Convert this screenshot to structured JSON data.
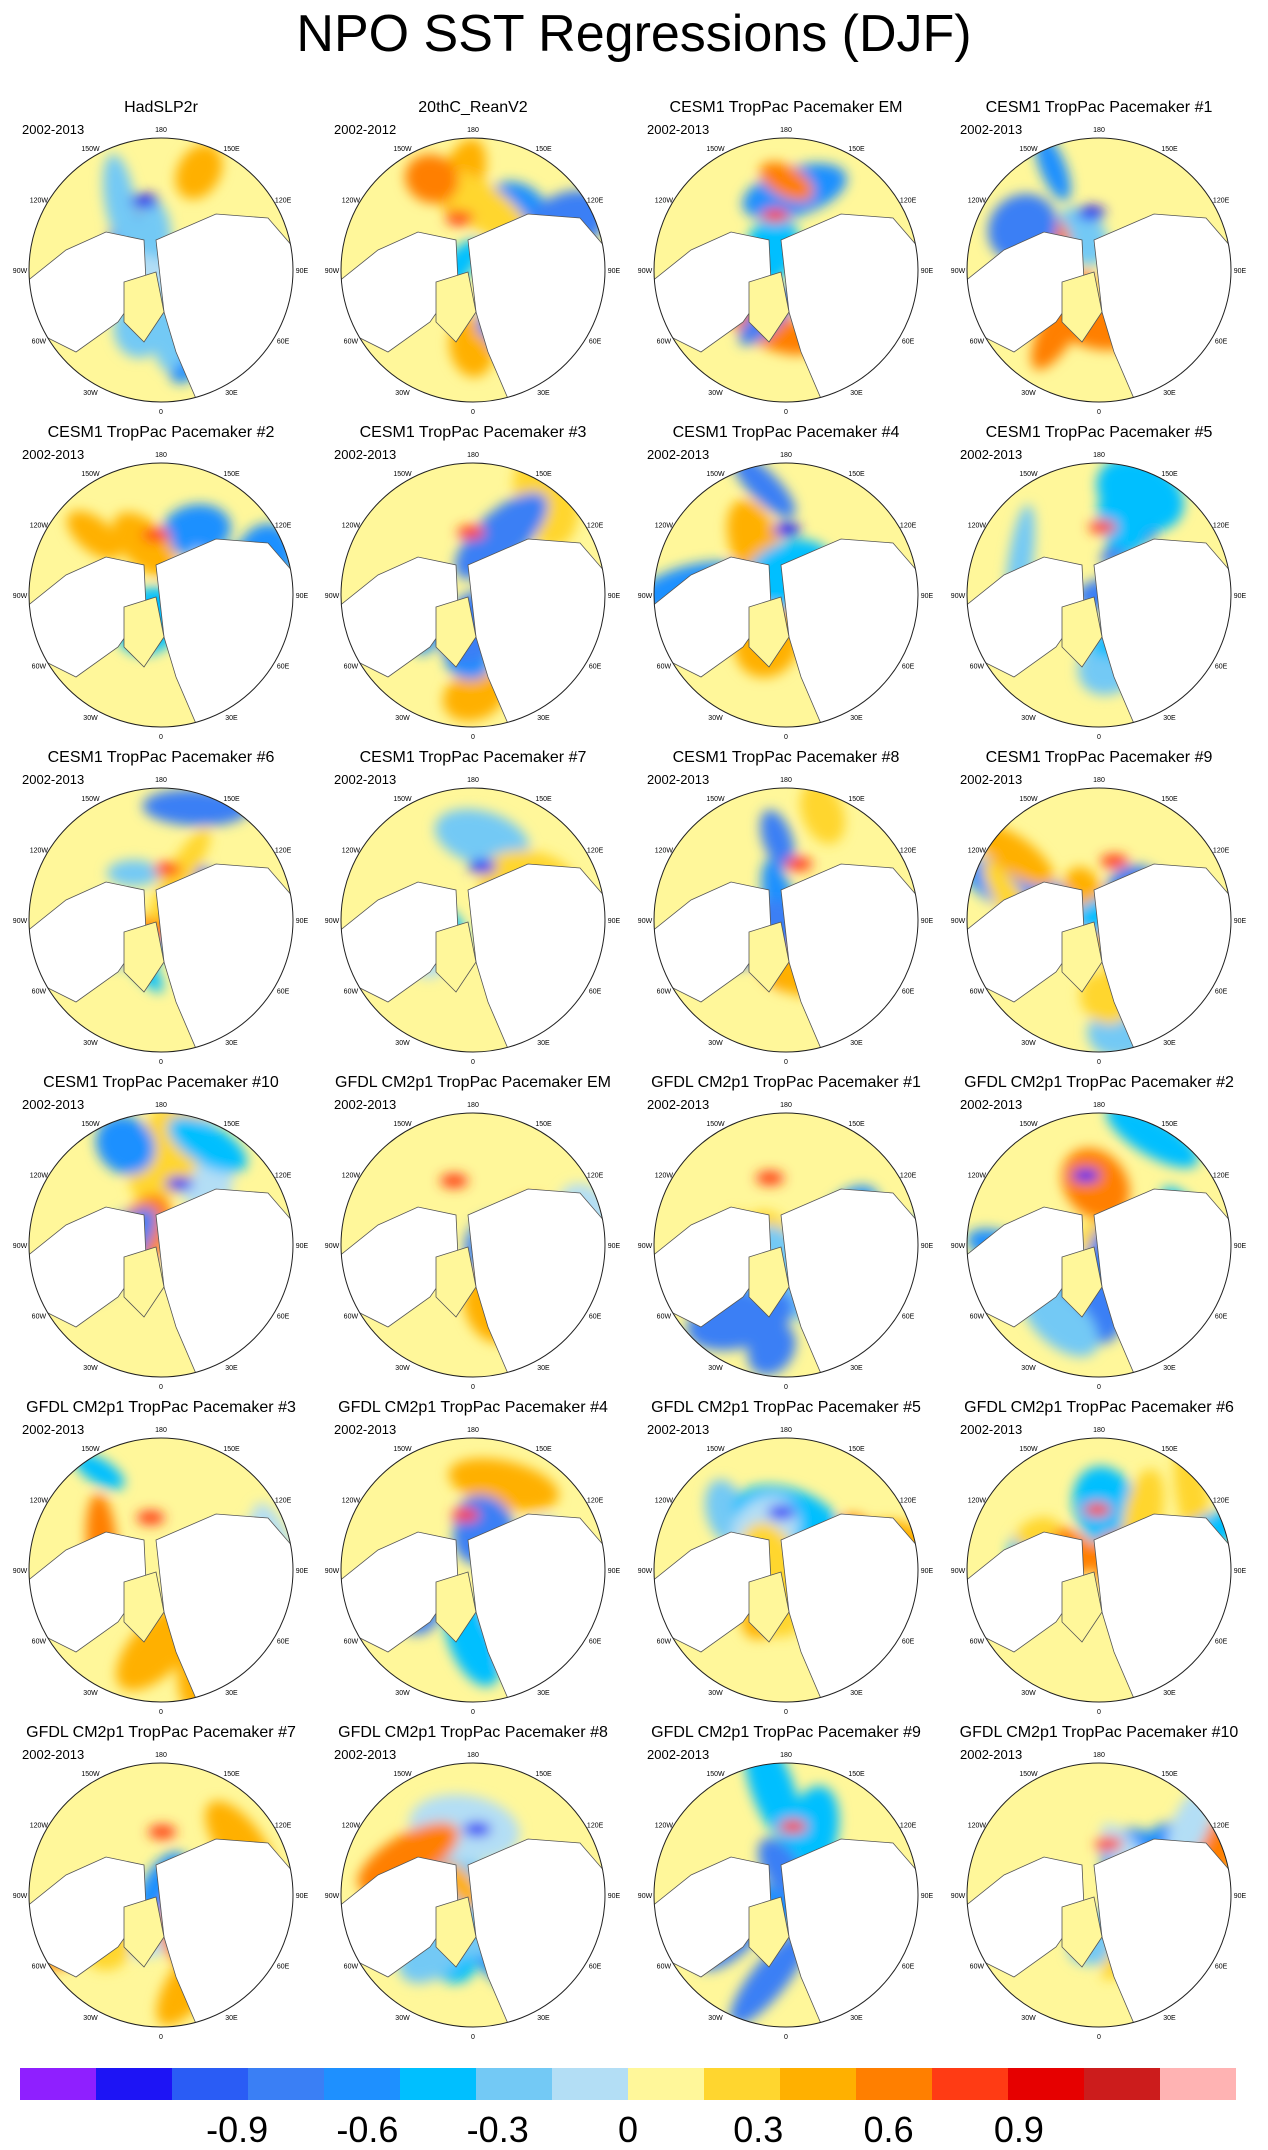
{
  "figure": {
    "title": "NPO SST Regressions (DJF)",
    "period_default": "2002-2013"
  },
  "chart_data": {
    "type": "heatmap",
    "projection": "polar stereographic, Northern Hemisphere",
    "longitude_labels": [
      "180",
      "150E",
      "120E",
      "90E",
      "60E",
      "30E",
      "0",
      "30W",
      "60W",
      "90W",
      "120W",
      "150W"
    ],
    "panels": [
      {
        "title": "HadSLP2r",
        "period": "2002-2013"
      },
      {
        "title": "20thC_ReanV2",
        "period": "2002-2012"
      },
      {
        "title": "CESM1 TropPac Pacemaker EM",
        "period": "2002-2013"
      },
      {
        "title": "CESM1 TropPac Pacemaker #1",
        "period": "2002-2013"
      },
      {
        "title": "CESM1 TropPac Pacemaker #2",
        "period": "2002-2013"
      },
      {
        "title": "CESM1 TropPac Pacemaker #3",
        "period": "2002-2013"
      },
      {
        "title": "CESM1 TropPac Pacemaker #4",
        "period": "2002-2013"
      },
      {
        "title": "CESM1 TropPac Pacemaker #5",
        "period": "2002-2013"
      },
      {
        "title": "CESM1 TropPac Pacemaker #6",
        "period": "2002-2013"
      },
      {
        "title": "CESM1 TropPac Pacemaker #7",
        "period": "2002-2013"
      },
      {
        "title": "CESM1 TropPac Pacemaker #8",
        "period": "2002-2013"
      },
      {
        "title": "CESM1 TropPac Pacemaker #9",
        "period": "2002-2013"
      },
      {
        "title": "CESM1 TropPac Pacemaker #10",
        "period": "2002-2013"
      },
      {
        "title": "GFDL CM2p1 TropPac Pacemaker EM",
        "period": "2002-2013"
      },
      {
        "title": "GFDL CM2p1 TropPac Pacemaker #1",
        "period": "2002-2013"
      },
      {
        "title": "GFDL CM2p1 TropPac Pacemaker #2",
        "period": "2002-2013"
      },
      {
        "title": "GFDL CM2p1 TropPac Pacemaker #3",
        "period": "2002-2013"
      },
      {
        "title": "GFDL CM2p1 TropPac Pacemaker #4",
        "period": "2002-2013"
      },
      {
        "title": "GFDL CM2p1 TropPac Pacemaker #5",
        "period": "2002-2013"
      },
      {
        "title": "GFDL CM2p1 TropPac Pacemaker #6",
        "period": "2002-2013"
      },
      {
        "title": "GFDL CM2p1 TropPac Pacemaker #7",
        "period": "2002-2013"
      },
      {
        "title": "GFDL CM2p1 TropPac Pacemaker #8",
        "period": "2002-2013"
      },
      {
        "title": "GFDL CM2p1 TropPac Pacemaker #9",
        "period": "2002-2013"
      },
      {
        "title": "GFDL CM2p1 TropPac Pacemaker #10",
        "period": "2002-2013"
      }
    ],
    "colorbar": {
      "colors": [
        "#8f1fff",
        "#1d14f5",
        "#2a5cf5",
        "#3a7ff5",
        "#1e90ff",
        "#00bfff",
        "#73c9f5",
        "#b3def5",
        "#fff79a",
        "#ffd62f",
        "#ffb000",
        "#ff7f00",
        "#ff3b14",
        "#e60000",
        "#cc1c1c",
        "#ffb3b3"
      ],
      "ticks": [
        {
          "label": "-0.9",
          "value": -0.9
        },
        {
          "label": "-0.6",
          "value": -0.6
        },
        {
          "label": "-0.3",
          "value": -0.3
        },
        {
          "label": "0",
          "value": 0
        },
        {
          "label": "0.3",
          "value": 0.3
        },
        {
          "label": "0.6",
          "value": 0.6
        },
        {
          "label": "0.9",
          "value": 0.9
        }
      ],
      "range": [
        -1.4,
        1.4
      ]
    },
    "land_color": "#ffffff",
    "coast_color": "#555555"
  }
}
